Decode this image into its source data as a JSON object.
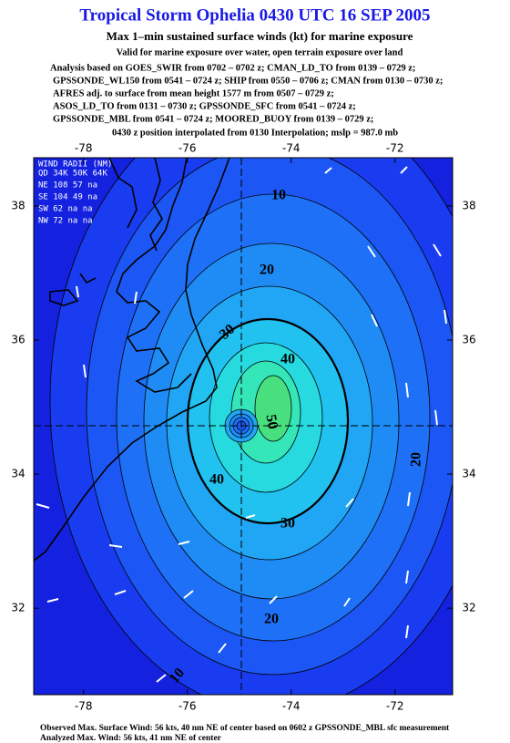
{
  "header": {
    "title": "Tropical Storm Ophelia 0430 UTC 16 SEP 2005",
    "subtitle": "Max 1–min sustained surface winds (kt) for marine exposure",
    "valid": "Valid for marine exposure over water, open terrain exposure over land",
    "analysis": [
      "Analysis based on  GOES_SWIR from 0702 – 0702 z;  CMAN_LD_TO from 0139 – 0729 z;",
      "GPSSONDE_WL150 from 0541 – 0724 z;  SHIP from 0550 – 0706 z;  CMAN from 0130 – 0730 z;",
      "AFRES adj. to surface from mean height 1577 m from 0507 – 0729 z;",
      "ASOS_LD_TO from 0131 – 0730 z;  GPSSONDE_SFC from 0541 – 0724 z;",
      "GPSSONDE_MBL from 0541 – 0724 z;  MOORED_BUOY from 0139 – 0729 z;"
    ],
    "position_note": "0430 z position interpolated from 0130 Interpolation; mslp = 987.0 mb"
  },
  "chart_data": {
    "type": "contour",
    "xlim": [
      -78.96,
      -70.89
    ],
    "ylim": [
      30.71,
      38.72
    ],
    "xticks": [
      -78,
      -76,
      -74,
      -72
    ],
    "yticks": [
      32,
      34,
      36,
      38
    ],
    "background_color": "#1422e0",
    "contour_levels": [
      10,
      15,
      20,
      25,
      30,
      35,
      40,
      45,
      50
    ],
    "fill_colors": [
      "#1a3cf0",
      "#1c56f4",
      "#1e70f6",
      "#1f8cf6",
      "#20a6f4",
      "#22c2f0",
      "#26dae0",
      "#34e6b8",
      "#48e07e"
    ],
    "contour_labels": [
      10,
      20,
      30,
      40,
      50,
      40,
      30,
      20,
      20,
      10
    ]
  },
  "wind_radii": {
    "title": "WIND RADII (NM)",
    "header": "QD 34K 50K 64K",
    "rows": [
      "NE 108 57  na",
      "SE 104 49  na",
      "SW 62  na  na",
      "NW 72  na  na"
    ]
  },
  "footer": [
    "Observed Max. Surface Wind: 56 kts, 40 nm NE of center based on 0602 z GPSSONDE_MBL sfc measurement",
    "Analyzed Max. Wind: 56 kts, 41 nm NE of center"
  ]
}
